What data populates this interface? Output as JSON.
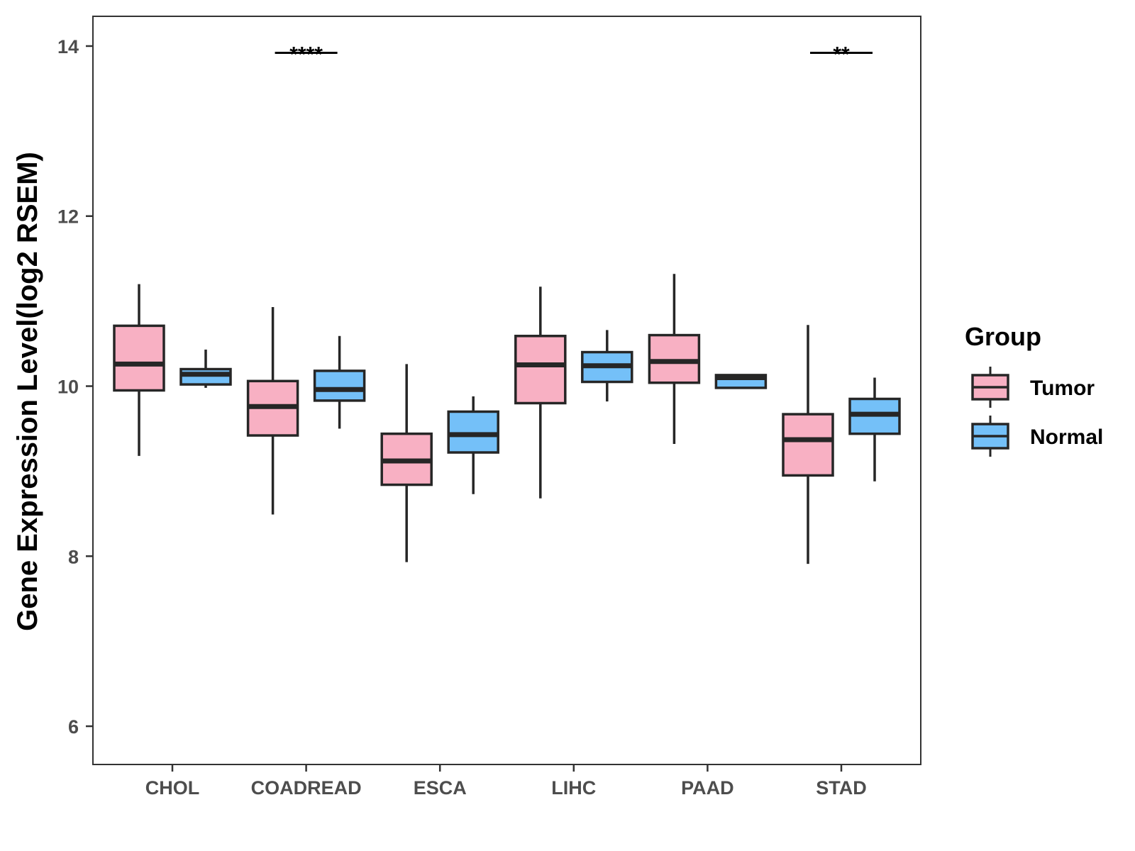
{
  "chart_data": {
    "type": "boxplot",
    "title": "",
    "xlabel": "",
    "ylabel": "Gene Expression Level(log2 RSEM)",
    "ylim": [
      5.55,
      14.35
    ],
    "yticks": [
      6,
      8,
      10,
      12,
      14
    ],
    "ytick_labels": [
      "6",
      "8",
      "10",
      "12",
      "14"
    ],
    "categories": [
      "CHOL",
      "COADREAD",
      "ESCA",
      "LIHC",
      "PAAD",
      "STAD"
    ],
    "legend": {
      "title": "Group",
      "position": "right",
      "items": [
        {
          "name": "Tumor",
          "color": "#f8b0c3"
        },
        {
          "name": "Normal",
          "color": "#74c0f8"
        }
      ]
    },
    "series": [
      {
        "name": "Tumor",
        "color": "#f8b0c3",
        "boxes": [
          {
            "category": "CHOL",
            "min": 9.18,
            "q1": 9.95,
            "median": 10.26,
            "q3": 10.71,
            "max": 11.2
          },
          {
            "category": "COADREAD",
            "min": 8.49,
            "q1": 9.42,
            "median": 9.76,
            "q3": 10.06,
            "max": 10.93
          },
          {
            "category": "ESCA",
            "min": 7.93,
            "q1": 8.84,
            "median": 9.12,
            "q3": 9.44,
            "max": 10.26
          },
          {
            "category": "LIHC",
            "min": 8.68,
            "q1": 9.8,
            "median": 10.25,
            "q3": 10.59,
            "max": 11.17
          },
          {
            "category": "PAAD",
            "min": 9.32,
            "q1": 10.04,
            "median": 10.29,
            "q3": 10.6,
            "max": 11.32
          },
          {
            "category": "STAD",
            "min": 7.91,
            "q1": 8.95,
            "median": 9.37,
            "q3": 9.67,
            "max": 10.72
          }
        ]
      },
      {
        "name": "Normal",
        "color": "#74c0f8",
        "boxes": [
          {
            "category": "CHOL",
            "min": 9.98,
            "q1": 10.02,
            "median": 10.14,
            "q3": 10.2,
            "max": 10.43
          },
          {
            "category": "COADREAD",
            "min": 9.5,
            "q1": 9.83,
            "median": 9.96,
            "q3": 10.18,
            "max": 10.59
          },
          {
            "category": "ESCA",
            "min": 8.73,
            "q1": 9.22,
            "median": 9.43,
            "q3": 9.7,
            "max": 9.88
          },
          {
            "category": "LIHC",
            "min": 9.82,
            "q1": 10.05,
            "median": 10.24,
            "q3": 10.4,
            "max": 10.66
          },
          {
            "category": "PAAD",
            "min": 9.98,
            "q1": 9.98,
            "median": 10.1,
            "q3": 10.13,
            "max": 10.13
          },
          {
            "category": "STAD",
            "min": 8.88,
            "q1": 9.44,
            "median": 9.67,
            "q3": 9.85,
            "max": 10.1
          }
        ]
      }
    ],
    "annotations": [
      {
        "category": "COADREAD",
        "label": "****",
        "y": 13.92
      },
      {
        "category": "STAD",
        "label": "**",
        "y": 13.92
      }
    ],
    "grid": false
  }
}
